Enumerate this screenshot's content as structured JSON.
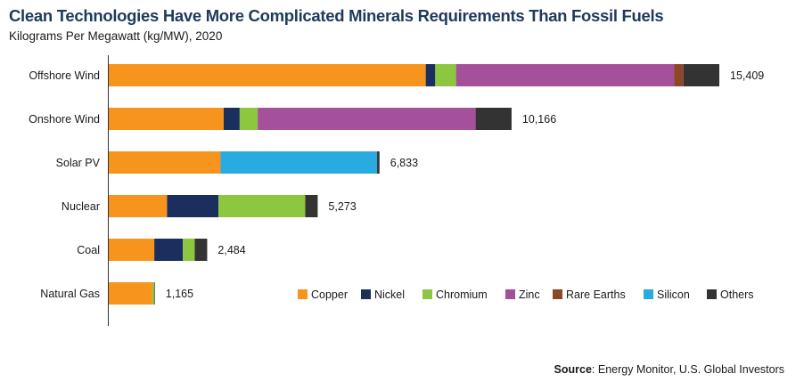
{
  "header": {
    "title": "Clean Technologies Have More Complicated Minerals Requirements Than Fossil Fuels",
    "subtitle": "Kilograms Per Megawatt (kg/MW), 2020"
  },
  "footer": {
    "source_label": "Source",
    "source_text": ": Energy Monitor, U.S. Global Investors"
  },
  "chart_data": {
    "type": "bar",
    "orientation": "horizontal",
    "stacked": true,
    "categories": [
      "Offshore Wind",
      "Onshore Wind",
      "Solar PV",
      "Nuclear",
      "Coal",
      "Natural Gas"
    ],
    "totals": [
      15409,
      10166,
      6833,
      5273,
      2484,
      1165
    ],
    "total_labels": [
      "15,409",
      "10,166",
      "6,833",
      "5,273",
      "2,484",
      "1,165"
    ],
    "series": [
      {
        "name": "Copper",
        "color": "#f7941d",
        "values": [
          8000,
          2900,
          2822,
          1473,
          1150,
          1100
        ]
      },
      {
        "name": "Nickel",
        "color": "#1b2f5e",
        "values": [
          240,
          404,
          0,
          1297,
          721,
          0
        ]
      },
      {
        "name": "Chromium",
        "color": "#8dc63f",
        "values": [
          525,
          455,
          0,
          2190,
          300,
          50
        ]
      },
      {
        "name": "Zinc",
        "color": "#a4509b",
        "values": [
          5500,
          5500,
          0,
          0,
          0,
          0
        ]
      },
      {
        "name": "Rare Earths",
        "color": "#8b4726",
        "values": [
          239,
          0,
          0,
          0,
          0,
          0
        ]
      },
      {
        "name": "Silicon",
        "color": "#29abe2",
        "values": [
          0,
          0,
          3950,
          0,
          0,
          0
        ]
      },
      {
        "name": "Others",
        "color": "#333333",
        "values": [
          905,
          907,
          61,
          313,
          313,
          15
        ]
      }
    ],
    "xlim": [
      0,
      15409
    ],
    "legend_position": "bottom-right",
    "grid": false
  }
}
